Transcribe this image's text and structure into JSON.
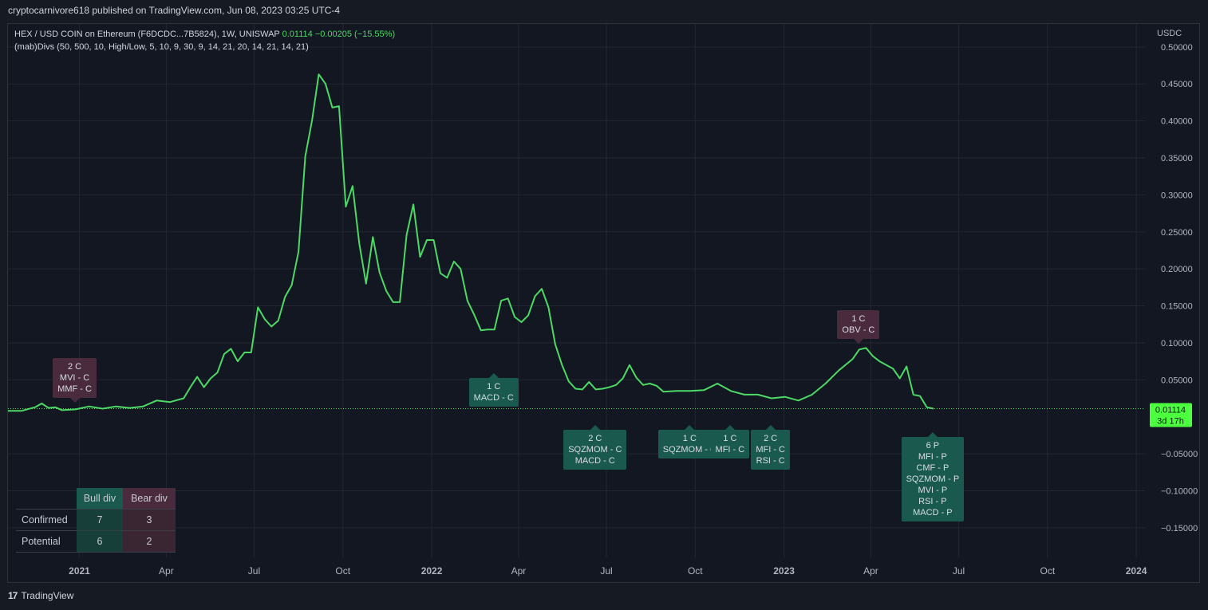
{
  "publisher": "cryptocarnivore618 published on TradingView.com, Jun 08, 2023 03:25 UTC-4",
  "legend": {
    "symbol": "HEX / USD COIN on Ethereum (F6DCDC...7B5824), 1W, UNISWAP",
    "last": "0.01114",
    "change": "−0.00205 (−15.55%)",
    "indicator": "(mab)Divs (50, 500, 10, High/Low, 5, 10, 9, 30, 9, 14, 21, 20, 14, 21, 14, 21)"
  },
  "brand": "TradingView",
  "colors": {
    "line": "#4cd964",
    "bull": "#1a5a4e",
    "bear": "#4a2b3d",
    "grid": "#232733",
    "bg": "#131722"
  },
  "chart_data": {
    "type": "line",
    "unit": "USDC",
    "price_label": {
      "value": "0.01114",
      "countdown": "3d 17h"
    },
    "yticks": [
      "0.50000",
      "0.45000",
      "0.40000",
      "0.35000",
      "0.30000",
      "0.25000",
      "0.20000",
      "0.15000",
      "0.10000",
      "0.05000",
      "−0.05000",
      "−0.10000",
      "−0.15000"
    ],
    "ytick_values": [
      0.5,
      0.45,
      0.4,
      0.35,
      0.3,
      0.25,
      0.2,
      0.15,
      0.1,
      0.05,
      -0.05,
      -0.1,
      -0.15
    ],
    "ylim": [
      -0.19,
      0.53
    ],
    "xlim": [
      "2020-10-19",
      "2024-01-10"
    ],
    "xticks": [
      {
        "label": "2021",
        "date": "2021-01-01",
        "bold": true
      },
      {
        "label": "Apr",
        "date": "2021-04-01"
      },
      {
        "label": "Jul",
        "date": "2021-07-01"
      },
      {
        "label": "Oct",
        "date": "2021-10-01"
      },
      {
        "label": "2022",
        "date": "2022-01-01",
        "bold": true
      },
      {
        "label": "Apr",
        "date": "2022-04-01"
      },
      {
        "label": "Jul",
        "date": "2022-07-01"
      },
      {
        "label": "Oct",
        "date": "2022-10-01"
      },
      {
        "label": "2023",
        "date": "2023-01-01",
        "bold": true
      },
      {
        "label": "Apr",
        "date": "2023-04-01"
      },
      {
        "label": "Jul",
        "date": "2023-07-01"
      },
      {
        "label": "Oct",
        "date": "2023-10-01"
      },
      {
        "label": "2024",
        "date": "2024-01-01",
        "bold": true
      }
    ],
    "series": [
      {
        "x": [
          "2020-10-19",
          "2020-11-02",
          "2020-11-16",
          "2020-11-23",
          "2020-11-30",
          "2020-12-07",
          "2020-12-14",
          "2020-12-28",
          "2021-01-11",
          "2021-01-25",
          "2021-02-08",
          "2021-02-22",
          "2021-03-08",
          "2021-03-22",
          "2021-04-05",
          "2021-04-19",
          "2021-04-26",
          "2021-05-03",
          "2021-05-10",
          "2021-05-17",
          "2021-05-24",
          "2021-05-31",
          "2021-06-07",
          "2021-06-14",
          "2021-06-21",
          "2021-06-28",
          "2021-07-05",
          "2021-07-12",
          "2021-07-19",
          "2021-07-26",
          "2021-08-02",
          "2021-08-09",
          "2021-08-16",
          "2021-08-23",
          "2021-08-30",
          "2021-09-06",
          "2021-09-13",
          "2021-09-20",
          "2021-09-27",
          "2021-10-04",
          "2021-10-11",
          "2021-10-18",
          "2021-10-25",
          "2021-11-01",
          "2021-11-08",
          "2021-11-15",
          "2021-11-22",
          "2021-11-29",
          "2021-12-06",
          "2021-12-13",
          "2021-12-20",
          "2021-12-27",
          "2022-01-03",
          "2022-01-10",
          "2022-01-17",
          "2022-01-24",
          "2022-01-31",
          "2022-02-07",
          "2022-02-14",
          "2022-02-21",
          "2022-02-28",
          "2022-03-07",
          "2022-03-14",
          "2022-03-21",
          "2022-03-28",
          "2022-04-04",
          "2022-04-11",
          "2022-04-18",
          "2022-04-25",
          "2022-05-02",
          "2022-05-09",
          "2022-05-16",
          "2022-05-23",
          "2022-05-30",
          "2022-06-06",
          "2022-06-13",
          "2022-06-20",
          "2022-06-27",
          "2022-07-04",
          "2022-07-11",
          "2022-07-18",
          "2022-07-25",
          "2022-08-01",
          "2022-08-08",
          "2022-08-15",
          "2022-08-22",
          "2022-08-29",
          "2022-09-12",
          "2022-09-26",
          "2022-10-10",
          "2022-10-24",
          "2022-11-07",
          "2022-11-21",
          "2022-12-05",
          "2022-12-19",
          "2023-01-02",
          "2023-01-16",
          "2023-01-30",
          "2023-02-13",
          "2023-02-27",
          "2023-03-13",
          "2023-03-20",
          "2023-03-27",
          "2023-04-03",
          "2023-04-10",
          "2023-04-24",
          "2023-05-01",
          "2023-05-08",
          "2023-05-15",
          "2023-05-22",
          "2023-05-29",
          "2023-06-05"
        ],
        "values": [
          0.008,
          0.008,
          0.013,
          0.018,
          0.012,
          0.013,
          0.009,
          0.01,
          0.014,
          0.011,
          0.014,
          0.012,
          0.014,
          0.022,
          0.02,
          0.025,
          0.04,
          0.054,
          0.04,
          0.052,
          0.06,
          0.085,
          0.092,
          0.075,
          0.087,
          0.087,
          0.148,
          0.132,
          0.122,
          0.13,
          0.162,
          0.178,
          0.223,
          0.352,
          0.4,
          0.463,
          0.45,
          0.418,
          0.42,
          0.284,
          0.312,
          0.234,
          0.18,
          0.243,
          0.195,
          0.17,
          0.155,
          0.155,
          0.246,
          0.287,
          0.216,
          0.239,
          0.239,
          0.194,
          0.188,
          0.21,
          0.2,
          0.157,
          0.138,
          0.117,
          0.118,
          0.118,
          0.157,
          0.16,
          0.135,
          0.128,
          0.137,
          0.163,
          0.173,
          0.148,
          0.098,
          0.07,
          0.048,
          0.038,
          0.037,
          0.047,
          0.037,
          0.038,
          0.04,
          0.043,
          0.052,
          0.07,
          0.053,
          0.043,
          0.045,
          0.042,
          0.034,
          0.035,
          0.035,
          0.036,
          0.045,
          0.035,
          0.03,
          0.03,
          0.025,
          0.027,
          0.022,
          0.03,
          0.045,
          0.063,
          0.078,
          0.091,
          0.093,
          0.082,
          0.075,
          0.065,
          0.052,
          0.068,
          0.03,
          0.028,
          0.013,
          0.011
        ]
      }
    ],
    "last_point": "2023-06-05",
    "signals": [
      {
        "kind": "bear",
        "date": "2020-12-28",
        "value": 0.014,
        "lines": [
          "2 C",
          "MVI - C",
          "MMF - C"
        ]
      },
      {
        "kind": "bull",
        "date": "2022-03-07",
        "value": 0.06,
        "lines": [
          "1 C",
          "MACD - C"
        ]
      },
      {
        "kind": "bull",
        "date": "2022-06-20",
        "value": -0.01,
        "lines": [
          "2 C",
          "SQZMOM - C",
          "MACD - C"
        ]
      },
      {
        "kind": "bull",
        "date": "2022-09-26",
        "value": -0.01,
        "lines": [
          "1 C",
          "SQZMOM - C"
        ]
      },
      {
        "kind": "bull",
        "date": "2022-11-07",
        "value": -0.01,
        "lines": [
          "1 C",
          "MFI - C"
        ]
      },
      {
        "kind": "bull",
        "date": "2022-12-19",
        "value": -0.01,
        "lines": [
          "2 C",
          "MFI - C",
          "RSI - C"
        ]
      },
      {
        "kind": "bear",
        "date": "2023-03-20",
        "value": 0.093,
        "lines": [
          "1 C",
          "OBV - C"
        ]
      },
      {
        "kind": "bull",
        "date": "2023-06-05",
        "value": -0.02,
        "lines": [
          "6 P",
          "MFI - P",
          "CMF - P",
          "SQZMOM - P",
          "MVI - P",
          "RSI - P",
          "MACD - P"
        ]
      }
    ]
  },
  "divtable": {
    "headers": [
      "",
      "Bull div",
      "Bear div"
    ],
    "rows": [
      {
        "label": "Confirmed",
        "bull": "7",
        "bear": "3"
      },
      {
        "label": "Potential",
        "bull": "6",
        "bear": "2"
      }
    ]
  }
}
